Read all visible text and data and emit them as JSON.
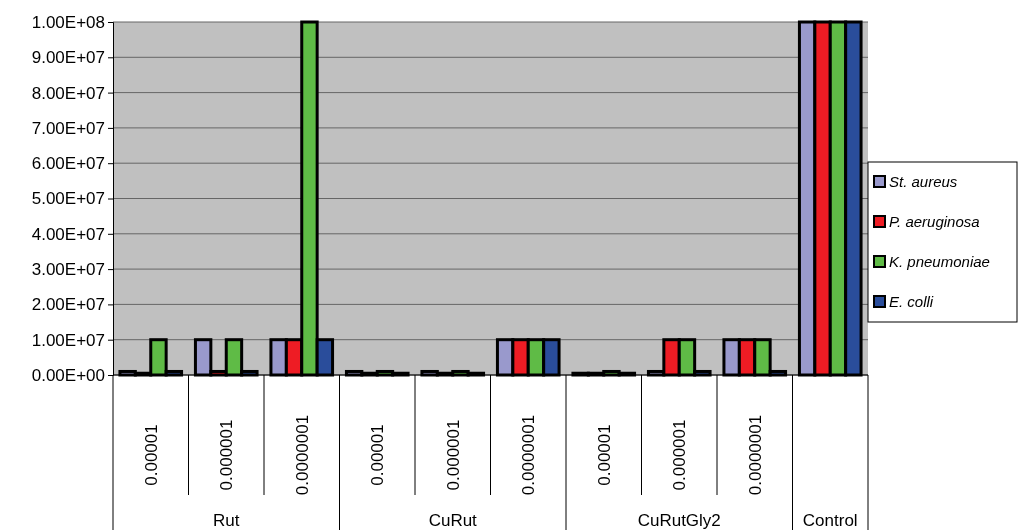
{
  "chart_data": {
    "type": "bar",
    "categories": [
      "0.00001",
      "0.000001",
      "0.0000001",
      "0.00001",
      "0.000001",
      "0.0000001",
      "0.00001",
      "0.000001",
      "0.0000001",
      null
    ],
    "series": [
      {
        "name": "St. aureus",
        "color": "#9999cc",
        "values": [
          1000000,
          10000000,
          10000000,
          1000000,
          1000000,
          10000000,
          500000,
          1000000,
          10000000,
          100000000
        ]
      },
      {
        "name": "P. aeruginosa",
        "color": "#ee1c24",
        "values": [
          500000,
          1000000,
          10000000,
          500000,
          500000,
          10000000,
          500000,
          10000000,
          10000000,
          100000000
        ]
      },
      {
        "name": "K. pneumoniae",
        "color": "#5fbb46",
        "values": [
          10000000,
          10000000,
          100000000,
          1000000,
          1000000,
          10000000,
          1000000,
          10000000,
          10000000,
          100000000
        ]
      },
      {
        "name": "E. colli",
        "color": "#2a4d9b",
        "values": [
          1000000,
          1000000,
          10000000,
          500000,
          500000,
          10000000,
          500000,
          1000000,
          1000000,
          100000000
        ]
      }
    ],
    "annotations": [
      "Rut",
      "CuRut",
      "CuRutGly2",
      "Control"
    ],
    "ylim": [
      0,
      100000000
    ],
    "yticks": [
      {
        "value": 0,
        "label": "0.00E+00"
      },
      {
        "value": 10000000,
        "label": "1.00E+07"
      },
      {
        "value": 20000000,
        "label": "2.00E+07"
      },
      {
        "value": 30000000,
        "label": "3.00E+07"
      },
      {
        "value": 40000000,
        "label": "4.00E+07"
      },
      {
        "value": 50000000,
        "label": "5.00E+07"
      },
      {
        "value": 60000000,
        "label": "6.00E+07"
      },
      {
        "value": 70000000,
        "label": "7.00E+07"
      },
      {
        "value": 80000000,
        "label": "8.00E+07"
      },
      {
        "value": 90000000,
        "label": "9.00E+07"
      },
      {
        "value": 100000000,
        "label": "1.00E+08"
      }
    ],
    "grid": "y",
    "legend": "right"
  }
}
